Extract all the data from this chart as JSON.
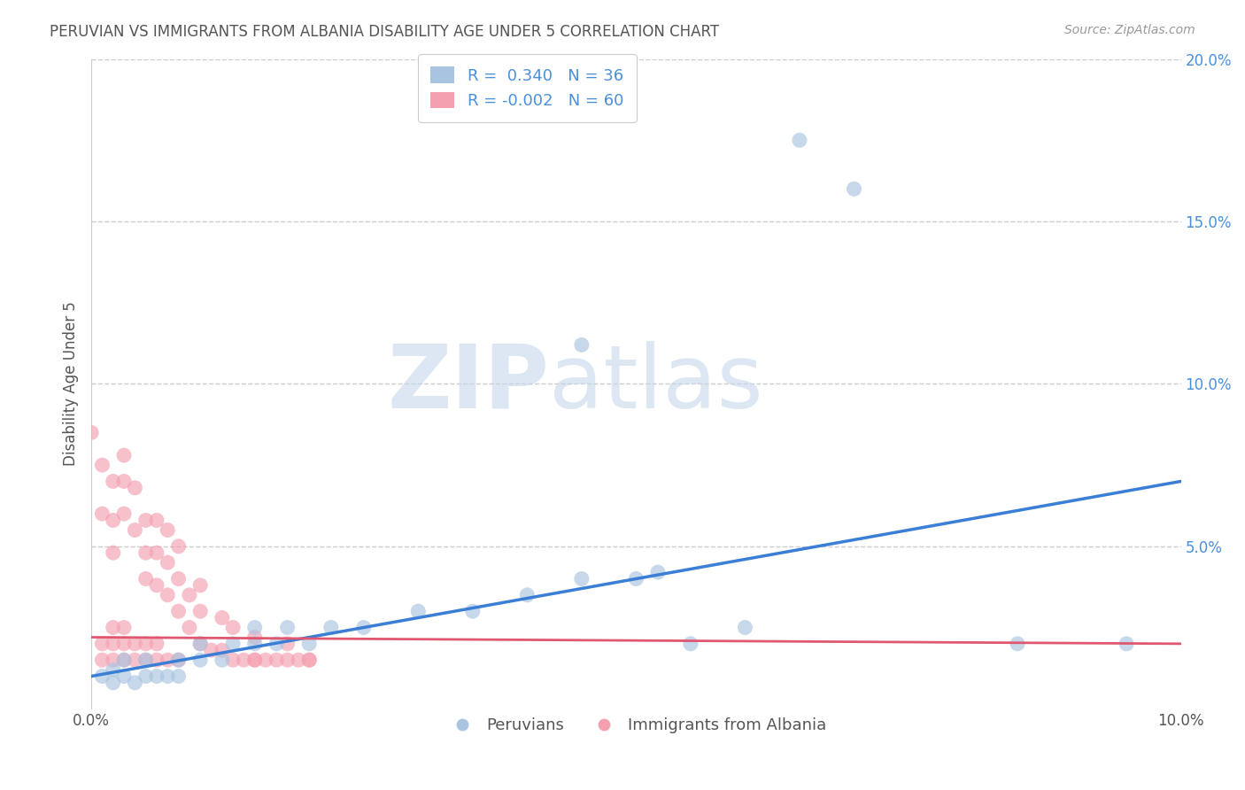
{
  "title": "PERUVIAN VS IMMIGRANTS FROM ALBANIA DISABILITY AGE UNDER 5 CORRELATION CHART",
  "source": "Source: ZipAtlas.com",
  "ylabel": "Disability Age Under 5",
  "xlim": [
    0.0,
    0.1
  ],
  "ylim": [
    0.0,
    0.2
  ],
  "xticks": [
    0.0,
    0.1
  ],
  "xtick_labels": [
    "0.0%",
    "10.0%"
  ],
  "yticks_right": [
    0.05,
    0.1,
    0.15,
    0.2
  ],
  "ytick_labels_right": [
    "5.0%",
    "10.0%",
    "15.0%",
    "20.0%"
  ],
  "legend_r1": "R =  0.340",
  "legend_n1": "N = 36",
  "legend_r2": "R = -0.002",
  "legend_n2": "N = 60",
  "blue_color": "#a8c4e0",
  "pink_color": "#f4a0b0",
  "trendline_blue": "#3a7fd5",
  "trendline_pink": "#e05870",
  "legend_text_color": "#4a90d9",
  "title_color": "#555555",
  "source_color": "#999999",
  "grid_color": "#cccccc",
  "blue_scatter": [
    [
      0.001,
      0.01
    ],
    [
      0.002,
      0.008
    ],
    [
      0.002,
      0.012
    ],
    [
      0.003,
      0.01
    ],
    [
      0.003,
      0.015
    ],
    [
      0.004,
      0.008
    ],
    [
      0.005,
      0.01
    ],
    [
      0.005,
      0.015
    ],
    [
      0.006,
      0.01
    ],
    [
      0.007,
      0.01
    ],
    [
      0.008,
      0.01
    ],
    [
      0.008,
      0.015
    ],
    [
      0.01,
      0.015
    ],
    [
      0.01,
      0.02
    ],
    [
      0.012,
      0.015
    ],
    [
      0.013,
      0.02
    ],
    [
      0.015,
      0.02
    ],
    [
      0.015,
      0.025
    ],
    [
      0.017,
      0.02
    ],
    [
      0.018,
      0.025
    ],
    [
      0.02,
      0.02
    ],
    [
      0.022,
      0.025
    ],
    [
      0.025,
      0.025
    ],
    [
      0.03,
      0.03
    ],
    [
      0.035,
      0.03
    ],
    [
      0.04,
      0.035
    ],
    [
      0.045,
      0.04
    ],
    [
      0.045,
      0.112
    ],
    [
      0.05,
      0.04
    ],
    [
      0.052,
      0.042
    ],
    [
      0.055,
      0.02
    ],
    [
      0.06,
      0.025
    ],
    [
      0.065,
      0.175
    ],
    [
      0.07,
      0.16
    ],
    [
      0.085,
      0.02
    ],
    [
      0.095,
      0.02
    ]
  ],
  "pink_scatter": [
    [
      0.0,
      0.085
    ],
    [
      0.001,
      0.06
    ],
    [
      0.001,
      0.075
    ],
    [
      0.002,
      0.048
    ],
    [
      0.002,
      0.058
    ],
    [
      0.002,
      0.07
    ],
    [
      0.003,
      0.06
    ],
    [
      0.003,
      0.07
    ],
    [
      0.003,
      0.078
    ],
    [
      0.004,
      0.055
    ],
    [
      0.004,
      0.068
    ],
    [
      0.005,
      0.04
    ],
    [
      0.005,
      0.048
    ],
    [
      0.005,
      0.058
    ],
    [
      0.006,
      0.038
    ],
    [
      0.006,
      0.048
    ],
    [
      0.006,
      0.058
    ],
    [
      0.007,
      0.035
    ],
    [
      0.007,
      0.045
    ],
    [
      0.007,
      0.055
    ],
    [
      0.008,
      0.03
    ],
    [
      0.008,
      0.04
    ],
    [
      0.008,
      0.05
    ],
    [
      0.009,
      0.025
    ],
    [
      0.009,
      0.035
    ],
    [
      0.01,
      0.02
    ],
    [
      0.01,
      0.03
    ],
    [
      0.01,
      0.038
    ],
    [
      0.011,
      0.018
    ],
    [
      0.012,
      0.018
    ],
    [
      0.012,
      0.028
    ],
    [
      0.013,
      0.015
    ],
    [
      0.013,
      0.025
    ],
    [
      0.014,
      0.015
    ],
    [
      0.015,
      0.015
    ],
    [
      0.015,
      0.022
    ],
    [
      0.016,
      0.015
    ],
    [
      0.017,
      0.015
    ],
    [
      0.018,
      0.015
    ],
    [
      0.018,
      0.02
    ],
    [
      0.019,
      0.015
    ],
    [
      0.02,
      0.015
    ],
    [
      0.001,
      0.015
    ],
    [
      0.001,
      0.02
    ],
    [
      0.002,
      0.015
    ],
    [
      0.002,
      0.02
    ],
    [
      0.002,
      0.025
    ],
    [
      0.003,
      0.015
    ],
    [
      0.003,
      0.02
    ],
    [
      0.003,
      0.025
    ],
    [
      0.004,
      0.015
    ],
    [
      0.004,
      0.02
    ],
    [
      0.005,
      0.015
    ],
    [
      0.005,
      0.02
    ],
    [
      0.006,
      0.015
    ],
    [
      0.006,
      0.02
    ],
    [
      0.007,
      0.015
    ],
    [
      0.008,
      0.015
    ],
    [
      0.015,
      0.015
    ],
    [
      0.02,
      0.015
    ]
  ],
  "blue_trend_x": [
    0.0,
    0.1
  ],
  "blue_trend_y": [
    0.01,
    0.07
  ],
  "pink_trend_x": [
    0.0,
    0.1
  ],
  "pink_trend_y": [
    0.022,
    0.02
  ],
  "watermark_zip": "ZIP",
  "watermark_atlas": "atlas",
  "legend_label1": "Peruvians",
  "legend_label2": "Immigrants from Albania"
}
